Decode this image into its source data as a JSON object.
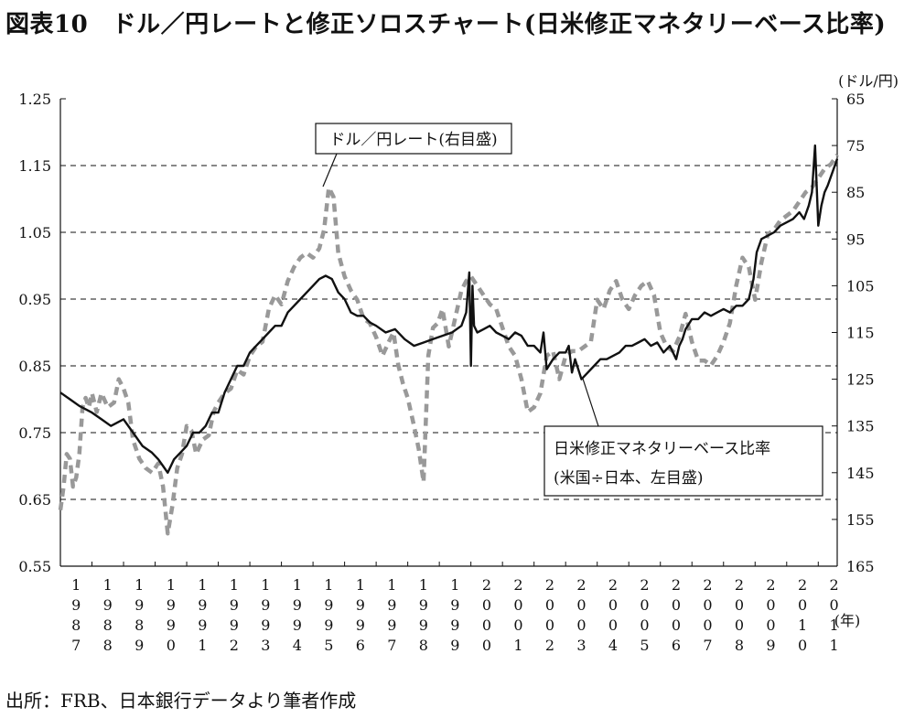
{
  "title": "図表10　ドル／円レートと修正ソロスチャート(日米修正マネタリーベース比率)",
  "source": "出所：FRB、日本銀行データより筆者作成",
  "chart_data": {
    "type": "line",
    "title": "図表10　ドル／円レートと修正ソロスチャート(日米修正マネタリーベース比率)",
    "xlabel": "(年)",
    "x_ticks": [
      "1987",
      "1988",
      "1989",
      "1990",
      "1991",
      "1992",
      "1993",
      "1994",
      "1995",
      "1996",
      "1997",
      "1998",
      "1999",
      "2000",
      "2001",
      "2002",
      "2003",
      "2004",
      "2005",
      "2006",
      "2007",
      "2008",
      "2009",
      "2010",
      "2011"
    ],
    "xlim": [
      1987,
      2011.6
    ],
    "y_left": {
      "ticks": [
        "1.25",
        "1.15",
        "1.05",
        "0.95",
        "0.85",
        "0.75",
        "0.65",
        "0.55"
      ],
      "ylim": [
        0.55,
        1.25
      ]
    },
    "y_right": {
      "unit": "(ドル/円)",
      "ticks": [
        "65",
        "75",
        "85",
        "95",
        "105",
        "115",
        "125",
        "135",
        "145",
        "155",
        "165"
      ],
      "ylim": [
        165,
        65
      ],
      "inverted": true
    },
    "grid": "dashed horizontal",
    "series": [
      {
        "name": "ドル／円レート(右目盛)",
        "axis": "right",
        "style": "dashed",
        "color": "#999999",
        "annotation": "ドル／円レート(右目盛)",
        "x": [
          1987.0,
          1987.1,
          1987.2,
          1987.3,
          1987.4,
          1987.5,
          1987.6,
          1987.7,
          1987.8,
          1987.9,
          1988.0,
          1988.15,
          1988.3,
          1988.5,
          1988.7,
          1988.85,
          1989.0,
          1989.15,
          1989.3,
          1989.5,
          1989.7,
          1989.9,
          1990.1,
          1990.25,
          1990.4,
          1990.55,
          1990.7,
          1990.85,
          1991.0,
          1991.15,
          1991.3,
          1991.5,
          1991.7,
          1991.85,
          1992.0,
          1992.2,
          1992.4,
          1992.6,
          1992.8,
          1993.0,
          1993.2,
          1993.4,
          1993.6,
          1993.8,
          1994.0,
          1994.2,
          1994.4,
          1994.6,
          1994.8,
          1995.0,
          1995.2,
          1995.35,
          1995.5,
          1995.65,
          1995.8,
          1996.0,
          1996.2,
          1996.4,
          1996.6,
          1996.8,
          1997.0,
          1997.2,
          1997.4,
          1997.55,
          1997.7,
          1997.85,
          1998.0,
          1998.2,
          1998.35,
          1998.5,
          1998.65,
          1998.8,
          1998.95,
          1999.1,
          1999.3,
          1999.5,
          1999.7,
          1999.85,
          2000.0,
          2000.2,
          2000.4,
          2000.6,
          2000.8,
          2001.0,
          2001.2,
          2001.4,
          2001.6,
          2001.8,
          2002.0,
          2002.2,
          2002.4,
          2002.6,
          2002.8,
          2003.0,
          2003.2,
          2003.4,
          2003.6,
          2003.8,
          2004.0,
          2004.2,
          2004.4,
          2004.6,
          2004.8,
          2005.0,
          2005.2,
          2005.4,
          2005.6,
          2005.8,
          2006.0,
          2006.2,
          2006.4,
          2006.6,
          2006.8,
          2007.0,
          2007.2,
          2007.4,
          2007.6,
          2007.8,
          2008.0,
          2008.2,
          2008.4,
          2008.6,
          2008.8,
          2009.0,
          2009.2,
          2009.4,
          2009.6,
          2009.8,
          2010.0,
          2010.2,
          2010.4,
          2010.6,
          2010.8,
          2011.0,
          2011.2,
          2011.4,
          2011.6
        ],
        "y": [
          153,
          148,
          141,
          142,
          148,
          146,
          141,
          131,
          129,
          131,
          128,
          132,
          128,
          131,
          130,
          125,
          127,
          130,
          138,
          142,
          144,
          145,
          143,
          148,
          158,
          152,
          144,
          141,
          135,
          136,
          141,
          138,
          137,
          132,
          130,
          128,
          127,
          123,
          124,
          120,
          118,
          117,
          110,
          107,
          109,
          104,
          101,
          99,
          98,
          99,
          97,
          93,
          84,
          86,
          98,
          103,
          106,
          108,
          112,
          113,
          116,
          120,
          117,
          115,
          122,
          126,
          129,
          135,
          140,
          147,
          120,
          114,
          113,
          110,
          118,
          112,
          106,
          104,
          103,
          105,
          107,
          109,
          110,
          114,
          118,
          120,
          125,
          132,
          131,
          128,
          120,
          119,
          125,
          120,
          119,
          119,
          118,
          117,
          108,
          110,
          106,
          104,
          108,
          110,
          107,
          105,
          104,
          107,
          115,
          118,
          119,
          116,
          111,
          117,
          121,
          121,
          122,
          120,
          117,
          113,
          105,
          99,
          101,
          108,
          100,
          94,
          93,
          91,
          90,
          89,
          87,
          85,
          84,
          82,
          80,
          79,
          77
        ]
      },
      {
        "name": "日米修正マネタリーベース比率(米国÷日本、左目盛)",
        "axis": "left",
        "style": "solid",
        "color": "#111111",
        "annotation": [
          "日米修正マネタリーベース比率",
          "(米国÷日本、左目盛)"
        ],
        "x": [
          1987.0,
          1987.3,
          1987.6,
          1988.0,
          1988.3,
          1988.6,
          1989.0,
          1989.3,
          1989.6,
          1989.9,
          1990.1,
          1990.25,
          1990.4,
          1990.6,
          1990.8,
          1991.0,
          1991.2,
          1991.4,
          1991.6,
          1991.8,
          1992.0,
          1992.2,
          1992.4,
          1992.6,
          1992.8,
          1993.0,
          1993.2,
          1993.4,
          1993.6,
          1993.8,
          1994.0,
          1994.2,
          1994.4,
          1994.6,
          1994.8,
          1995.0,
          1995.2,
          1995.4,
          1995.6,
          1995.8,
          1996.0,
          1996.2,
          1996.4,
          1996.6,
          1996.8,
          1997.0,
          1997.3,
          1997.6,
          1997.9,
          1998.2,
          1998.5,
          1998.8,
          1999.1,
          1999.4,
          1999.7,
          1999.85,
          1999.95,
          2000.0,
          2000.05,
          2000.1,
          2000.2,
          2000.4,
          2000.6,
          2000.8,
          2001.0,
          2001.2,
          2001.4,
          2001.6,
          2001.8,
          2002.0,
          2002.2,
          2002.3,
          2002.4,
          2002.6,
          2002.8,
          2003.0,
          2003.1,
          2003.2,
          2003.3,
          2003.5,
          2003.7,
          2003.9,
          2004.1,
          2004.3,
          2004.5,
          2004.7,
          2004.9,
          2005.1,
          2005.3,
          2005.5,
          2005.7,
          2005.9,
          2006.1,
          2006.3,
          2006.5,
          2006.6,
          2006.7,
          2006.8,
          2007.0,
          2007.2,
          2007.4,
          2007.6,
          2007.8,
          2008.0,
          2008.2,
          2008.4,
          2008.6,
          2008.8,
          2008.95,
          2009.05,
          2009.2,
          2009.4,
          2009.6,
          2009.8,
          2010.0,
          2010.2,
          2010.4,
          2010.55,
          2010.7,
          2010.8,
          2010.9,
          2011.0,
          2011.1,
          2011.2,
          2011.3,
          2011.45,
          2011.6
        ],
        "y": [
          0.81,
          0.8,
          0.79,
          0.78,
          0.77,
          0.76,
          0.77,
          0.75,
          0.73,
          0.72,
          0.71,
          0.7,
          0.69,
          0.71,
          0.72,
          0.73,
          0.75,
          0.75,
          0.76,
          0.78,
          0.78,
          0.81,
          0.83,
          0.85,
          0.85,
          0.87,
          0.88,
          0.89,
          0.9,
          0.91,
          0.91,
          0.93,
          0.94,
          0.95,
          0.96,
          0.97,
          0.98,
          0.985,
          0.98,
          0.96,
          0.95,
          0.93,
          0.925,
          0.925,
          0.915,
          0.91,
          0.9,
          0.905,
          0.89,
          0.88,
          0.885,
          0.89,
          0.895,
          0.9,
          0.91,
          0.93,
          0.99,
          0.85,
          0.97,
          0.91,
          0.9,
          0.905,
          0.91,
          0.9,
          0.895,
          0.89,
          0.9,
          0.895,
          0.88,
          0.88,
          0.87,
          0.9,
          0.845,
          0.86,
          0.87,
          0.87,
          0.88,
          0.84,
          0.86,
          0.83,
          0.84,
          0.85,
          0.86,
          0.86,
          0.865,
          0.87,
          0.88,
          0.88,
          0.885,
          0.89,
          0.88,
          0.885,
          0.87,
          0.88,
          0.86,
          0.88,
          0.89,
          0.905,
          0.92,
          0.92,
          0.93,
          0.925,
          0.93,
          0.935,
          0.93,
          0.94,
          0.94,
          0.95,
          0.98,
          1.02,
          1.04,
          1.045,
          1.05,
          1.06,
          1.065,
          1.07,
          1.08,
          1.07,
          1.09,
          1.11,
          1.18,
          1.06,
          1.09,
          1.11,
          1.12,
          1.14,
          1.16
        ]
      }
    ]
  }
}
